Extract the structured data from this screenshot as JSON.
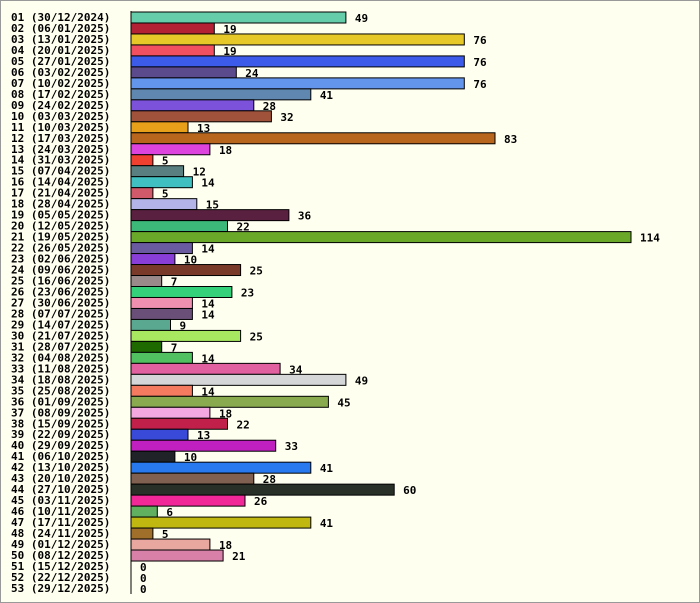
{
  "chart_data": {
    "type": "bar",
    "orientation": "horizontal",
    "title": "",
    "xlabel": "",
    "ylabel": "",
    "grid": false,
    "categories": [
      "01 (30/12/2024)",
      "02 (06/01/2025)",
      "03 (13/01/2025)",
      "04 (20/01/2025)",
      "05 (27/01/2025)",
      "06 (03/02/2025)",
      "07 (10/02/2025)",
      "08 (17/02/2025)",
      "09 (24/02/2025)",
      "10 (03/03/2025)",
      "11 (10/03/2025)",
      "12 (17/03/2025)",
      "13 (24/03/2025)",
      "14 (31/03/2025)",
      "15 (07/04/2025)",
      "16 (14/04/2025)",
      "17 (21/04/2025)",
      "18 (28/04/2025)",
      "19 (05/05/2025)",
      "20 (12/05/2025)",
      "21 (19/05/2025)",
      "22 (26/05/2025)",
      "23 (02/06/2025)",
      "24 (09/06/2025)",
      "25 (16/06/2025)",
      "26 (23/06/2025)",
      "27 (30/06/2025)",
      "28 (07/07/2025)",
      "29 (14/07/2025)",
      "30 (21/07/2025)",
      "31 (28/07/2025)",
      "32 (04/08/2025)",
      "33 (11/08/2025)",
      "34 (18/08/2025)",
      "35 (25/08/2025)",
      "36 (01/09/2025)",
      "37 (08/09/2025)",
      "38 (15/09/2025)",
      "39 (22/09/2025)",
      "40 (29/09/2025)",
      "41 (06/10/2025)",
      "42 (13/10/2025)",
      "43 (20/10/2025)",
      "44 (27/10/2025)",
      "45 (03/11/2025)",
      "46 (10/11/2025)",
      "47 (17/11/2025)",
      "48 (24/11/2025)",
      "49 (01/12/2025)",
      "50 (08/12/2025)",
      "51 (15/12/2025)",
      "52 (22/12/2025)",
      "53 (29/12/2025)"
    ],
    "values": [
      49,
      19,
      76,
      19,
      76,
      24,
      76,
      41,
      28,
      32,
      13,
      83,
      18,
      5,
      12,
      14,
      5,
      15,
      36,
      22,
      114,
      14,
      10,
      25,
      7,
      23,
      14,
      14,
      9,
      25,
      7,
      14,
      34,
      49,
      14,
      45,
      18,
      22,
      13,
      33,
      10,
      41,
      28,
      60,
      26,
      6,
      41,
      5,
      18,
      21,
      0,
      0,
      0
    ],
    "colors": [
      "#66cdaa",
      "#b22234",
      "#e6c928",
      "#f05060",
      "#3b5be8",
      "#5b4a8c",
      "#6495ed",
      "#5f87b0",
      "#7b52d9",
      "#a0523a",
      "#e8a01a",
      "#b8661e",
      "#dd44dd",
      "#f04030",
      "#5a7f80",
      "#40c0c0",
      "#d05a6a",
      "#b4b4e8",
      "#5a2040",
      "#3cb878",
      "#6aa82a",
      "#6a5aa0",
      "#8a3ed8",
      "#7a3a2a",
      "#9a8a8a",
      "#34d07a",
      "#f090b0",
      "#6a5078",
      "#5aa890",
      "#a8e860",
      "#1e6a00",
      "#50c060",
      "#e060a0",
      "#d4d6d8",
      "#f47a60",
      "#8aaa50",
      "#f4a8e0",
      "#c0204a",
      "#3a4ad8",
      "#c020c0",
      "#202428",
      "#2878f0",
      "#806050",
      "#283028",
      "#f02898",
      "#60b060",
      "#c0b810",
      "#a0702a",
      "#e8a8a0",
      "#d880a8",
      "#888888",
      "#888888",
      "#888888"
    ],
    "xlim": [
      0,
      114
    ]
  }
}
